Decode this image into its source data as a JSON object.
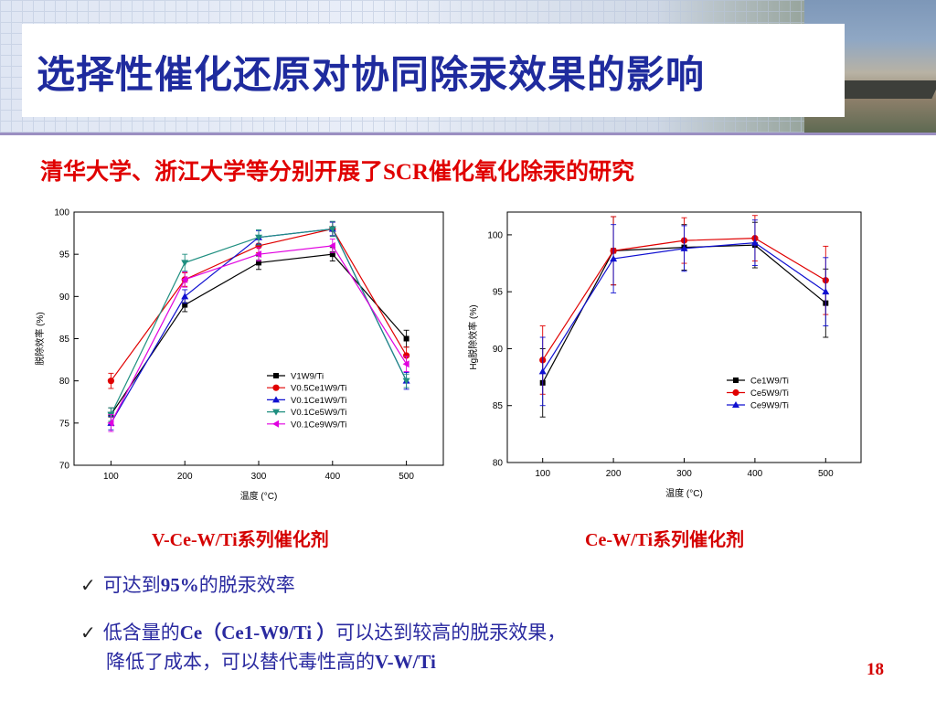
{
  "header": {
    "title": "选择性催化还原对协同除汞效果的影响"
  },
  "subtitle": {
    "part1": "清华大学、浙江大学等分别开展了",
    "part2": "SCR",
    "part3": "催化氧化除汞的研究"
  },
  "colors": {
    "title": "#1f2b9e",
    "accent_red": "#d40000",
    "bullet_text": "#2a2aa0",
    "series": [
      "#000000",
      "#e00000",
      "#1010d0",
      "#1f8f80",
      "#e000e0"
    ]
  },
  "chart_data": [
    {
      "type": "line",
      "x": [
        100,
        200,
        300,
        400,
        500
      ],
      "xlabel": "温度 (°C)",
      "ylabel": "脱除效率 (%)",
      "xticks": [
        "100",
        "200",
        "300",
        "400",
        "500"
      ],
      "yticks": [
        "70",
        "75",
        "80",
        "85",
        "90",
        "95",
        "100"
      ],
      "xlim": [
        50,
        550
      ],
      "ylim": [
        70,
        100
      ],
      "legend_position": "lower-right",
      "series": [
        {
          "name": "V1W9/Ti",
          "marker": "square",
          "values": [
            76,
            89,
            94,
            95,
            85
          ],
          "errors": [
            0.8,
            0.8,
            0.8,
            0.8,
            1.0
          ]
        },
        {
          "name": "V0.5Ce1W9/Ti",
          "marker": "circle",
          "values": [
            80,
            92,
            96,
            98,
            83
          ],
          "errors": [
            0.9,
            0.8,
            0.8,
            0.8,
            1.0
          ]
        },
        {
          "name": "V0.1Ce1W9/Ti",
          "marker": "triangle-up",
          "values": [
            75,
            90,
            97,
            98,
            80
          ],
          "errors": [
            0.8,
            0.8,
            0.8,
            0.8,
            1.0
          ]
        },
        {
          "name": "V0.1Ce5W9/Ti",
          "marker": "triangle-down",
          "values": [
            76,
            94,
            97,
            98,
            80
          ],
          "errors": [
            0.8,
            1.0,
            0.9,
            0.9,
            0.8
          ]
        },
        {
          "name": "V0.1Ce9W9/Ti",
          "marker": "triangle-left",
          "values": [
            75,
            92,
            95,
            96,
            82
          ],
          "errors": [
            1.0,
            0.9,
            0.8,
            0.8,
            0.9
          ]
        }
      ]
    },
    {
      "type": "line",
      "x": [
        100,
        200,
        300,
        400,
        500
      ],
      "xlabel": "温度 (°C)",
      "ylabel": "Hg脱除效率 (%)",
      "xticks": [
        "100",
        "200",
        "300",
        "400",
        "500"
      ],
      "yticks": [
        "80",
        "85",
        "90",
        "95",
        "100"
      ],
      "xlim": [
        50,
        550
      ],
      "ylim": [
        80,
        102
      ],
      "legend_position": "lower-right",
      "series": [
        {
          "name": "Ce1W9/Ti",
          "marker": "square",
          "values": [
            87,
            98.6,
            98.9,
            99.1,
            94
          ],
          "errors": [
            3,
            3,
            2,
            2,
            3
          ]
        },
        {
          "name": "Ce5W9/Ti",
          "marker": "circle",
          "values": [
            89,
            98.6,
            99.5,
            99.7,
            96
          ],
          "errors": [
            3,
            3,
            2,
            2,
            3
          ]
        },
        {
          "name": "Ce9W9/Ti",
          "marker": "triangle-up",
          "values": [
            88,
            97.9,
            98.8,
            99.3,
            95
          ],
          "errors": [
            3,
            3,
            2,
            2,
            3
          ]
        }
      ]
    }
  ],
  "captions": {
    "left": "V-Ce-W/Ti系列催化剂",
    "right": "Ce-W/Ti系列催化剂"
  },
  "bullets": {
    "b1_a": "可达到",
    "b1_b": "95%",
    "b1_c": "的脱汞效率",
    "b2_a": "低含量的",
    "b2_b": "Ce（Ce1-W9/Ti ）",
    "b2_c": "可以达到较高的脱汞效果，",
    "b3_a": "降低了成本，可以替代毒性高的",
    "b3_b": "V-W/Ti"
  },
  "page_number": "18"
}
